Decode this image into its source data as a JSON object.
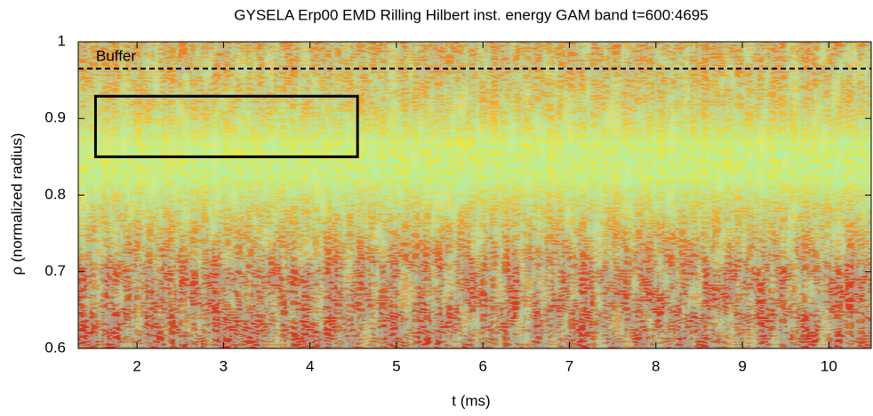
{
  "chart_data": {
    "type": "heatmap",
    "title": "GYSELA Erp00 EMD Rilling Hilbert inst. energy GAM band t=600:4695",
    "xlabel": "t (ms)",
    "ylabel": "ρ (normalized radius)",
    "xlim": [
      1.32,
      10.49
    ],
    "ylim": [
      0.6,
      1
    ],
    "xticks": [
      2,
      3,
      4,
      5,
      6,
      7,
      8,
      9,
      10
    ],
    "yticks": [
      0.6,
      0.7,
      0.8,
      0.9,
      1
    ],
    "buffer_label": "Buffer",
    "buffer_line": 0.965,
    "box": {
      "x": [
        1.52,
        4.55
      ],
      "y": [
        0.85,
        0.929
      ]
    }
  }
}
